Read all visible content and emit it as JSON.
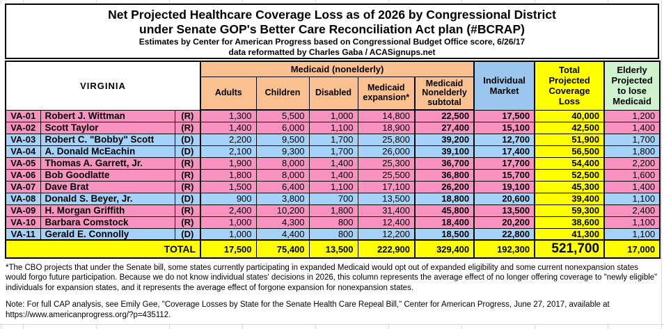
{
  "page": {
    "title_line1": "Net Projected Healthcare Coverage Loss as of 2026 by Congressional District",
    "title_line2": "under Senate GOP's Better Care Reconciliation Act plan (#BCRAP)",
    "subtitle_line1": "Estimates by Center for American Progress based on Congressional Budget Office score, 6/26/17",
    "subtitle_line2": "data reformatted by Charles Gaba / ACASignups.net"
  },
  "chart_data": {
    "type": "table",
    "state": "VIRGINIA",
    "group_header": "Medicaid (nonelderly)",
    "columns": [
      "Adults",
      "Children",
      "Disabled",
      "Medicaid expansion*",
      "Medicaid Nonelderly subtotal",
      "Individual Market",
      "Total Projected Coverage Loss",
      "Elderly Projected to lose Medicaid"
    ],
    "rows": [
      {
        "district": "VA-01",
        "name": "Robert J. Wittman",
        "party": "(R)",
        "values": [
          1300,
          5500,
          1000,
          14800,
          22500,
          17500,
          40000,
          1200
        ]
      },
      {
        "district": "VA-02",
        "name": "Scott Taylor",
        "party": "(R)",
        "values": [
          1400,
          6000,
          1100,
          18900,
          27400,
          15100,
          42500,
          1400
        ]
      },
      {
        "district": "VA-03",
        "name": "Robert C. \"Bobby\" Scott",
        "party": "(D)",
        "values": [
          2200,
          9500,
          1700,
          25800,
          39200,
          12700,
          51900,
          1700
        ]
      },
      {
        "district": "VA-04",
        "name": "A. Donald McEachin",
        "party": "(D)",
        "values": [
          2100,
          9300,
          1700,
          26000,
          39100,
          17400,
          56500,
          1800
        ]
      },
      {
        "district": "VA-05",
        "name": "Thomas A. Garrett, Jr.",
        "party": "(R)",
        "values": [
          1900,
          8000,
          1400,
          25300,
          36700,
          17700,
          54400,
          2200
        ]
      },
      {
        "district": "VA-06",
        "name": "Bob Goodlatte",
        "party": "(R)",
        "values": [
          1800,
          8000,
          1400,
          25500,
          36800,
          15700,
          52500,
          1600
        ]
      },
      {
        "district": "VA-07",
        "name": "Dave Brat",
        "party": "(R)",
        "values": [
          1500,
          6400,
          1100,
          17100,
          26200,
          19100,
          45300,
          1400
        ]
      },
      {
        "district": "VA-08",
        "name": "Donald S. Beyer, Jr.",
        "party": "(D)",
        "values": [
          900,
          3800,
          700,
          13500,
          18800,
          20600,
          39400,
          1100
        ]
      },
      {
        "district": "VA-09",
        "name": "H. Morgan Griffith",
        "party": "(R)",
        "values": [
          2400,
          10200,
          1800,
          31400,
          45800,
          13500,
          59300,
          2400
        ]
      },
      {
        "district": "VA-10",
        "name": "Barbara Comstock",
        "party": "(R)",
        "values": [
          1000,
          4300,
          800,
          12400,
          18400,
          20200,
          38600,
          1100
        ]
      },
      {
        "district": "VA-11",
        "name": "Gerald E. Connolly",
        "party": "(D)",
        "values": [
          1000,
          4400,
          800,
          12200,
          18500,
          22800,
          41300,
          1100
        ]
      }
    ],
    "total_label": "TOTAL",
    "totals": [
      17500,
      75400,
      13500,
      222900,
      329400,
      192300,
      521700,
      17000
    ],
    "footnote": "*The CBO projects that under the Senate bill, some states currently participating in expanded Medicaid would opt out of expanded eligibility and some current nonexpansion states would forgo future participation. Because we do not know individual states' decisions in 2026, this column represents the average effect of no longer offering coverage to \"newly eligible\" individuals for expansion states, and it represents the average effect of forgone expansion for nonexpansion states.",
    "note_text": "Note: For full CAP analysis, see Emily Gee, \"Coverage Losses by State for the Senate Health Care Repeal Bill,\" Center for American Progress, June 27, 2017, available at",
    "note_url": "https://www.americanprogress.org/?p=435112.",
    "colors": {
      "republican_row": "#F792C1",
      "democrat_row": "#A4D2F8",
      "medicaid_header": "#FAC090",
      "individual_market_header": "#9BC7EF",
      "total_column": "#FFFF00",
      "elderly_header": "#CFF3CF",
      "total_row": "#FFFF00"
    }
  }
}
